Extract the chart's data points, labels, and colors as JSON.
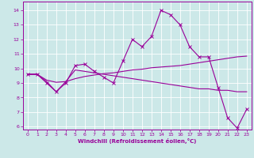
{
  "xlabel": "Windchill (Refroidissement éolien,°C)",
  "bg_color": "#cce8e8",
  "grid_color": "#ffffff",
  "line_color": "#990099",
  "xlim": [
    -0.5,
    23.5
  ],
  "ylim": [
    5.8,
    14.6
  ],
  "xticks": [
    0,
    1,
    2,
    3,
    4,
    5,
    6,
    7,
    8,
    9,
    10,
    11,
    12,
    13,
    14,
    15,
    16,
    17,
    18,
    19,
    20,
    21,
    22,
    23
  ],
  "yticks": [
    6,
    7,
    8,
    9,
    10,
    11,
    12,
    13,
    14
  ],
  "hours": [
    0,
    1,
    2,
    3,
    4,
    5,
    6,
    7,
    8,
    9,
    10,
    11,
    12,
    13,
    14,
    15,
    16,
    17,
    18,
    19,
    20,
    21,
    22,
    23
  ],
  "line1": [
    9.6,
    9.6,
    9.0,
    8.4,
    9.0,
    10.2,
    10.3,
    9.8,
    9.4,
    9.0,
    10.5,
    12.0,
    11.5,
    12.2,
    14.0,
    13.7,
    13.0,
    11.5,
    10.8,
    10.8,
    8.7,
    6.6,
    5.9,
    7.2
  ],
  "line2": [
    9.6,
    9.6,
    9.1,
    8.4,
    9.1,
    9.9,
    9.8,
    9.7,
    9.6,
    9.5,
    9.4,
    9.3,
    9.2,
    9.1,
    9.0,
    8.9,
    8.8,
    8.7,
    8.6,
    8.6,
    8.5,
    8.5,
    8.4,
    8.4
  ],
  "line3": [
    9.6,
    9.6,
    9.2,
    9.05,
    9.1,
    9.3,
    9.45,
    9.55,
    9.65,
    9.7,
    9.8,
    9.9,
    9.95,
    10.05,
    10.1,
    10.15,
    10.2,
    10.3,
    10.4,
    10.5,
    10.6,
    10.7,
    10.8,
    10.85
  ]
}
